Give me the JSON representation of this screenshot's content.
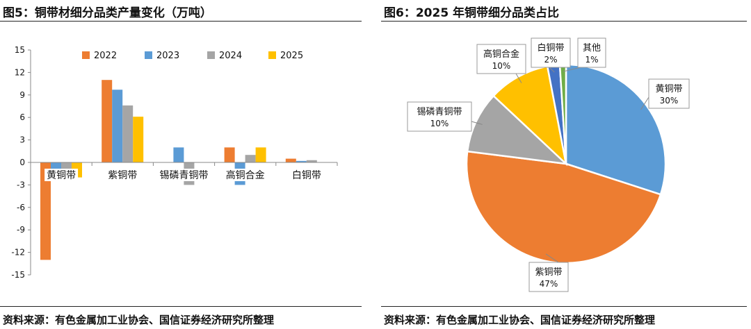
{
  "left_figure": {
    "title": "图5：铜带材细分品类产量变化（万吨）",
    "source": "资料来源：有色金属加工业协会、国信证券经济研究所整理"
  },
  "right_figure": {
    "title": "图6：2025 年铜带细分品类占比",
    "source": "资料来源：有色金属加工业协会、国信证券经济研究所整理"
  },
  "colors": {
    "2022": "#ED7D31",
    "2023": "#5B9BD5",
    "2024": "#A5A5A5",
    "2025": "#FFC000",
    "other": "#70AD47",
    "white_copper": "#4472C4"
  },
  "chart_data": [
    {
      "type": "bar",
      "title": "图5：铜带材细分品类产量变化（万吨）",
      "categories": [
        "黄铜带",
        "紫铜带",
        "锡磷青铜带",
        "高铜合金",
        "白铜带"
      ],
      "series": [
        {
          "name": "2022",
          "values": [
            -13,
            11,
            0,
            2,
            0.5
          ]
        },
        {
          "name": "2023",
          "values": [
            -1,
            9.7,
            2,
            -3,
            0.2
          ]
        },
        {
          "name": "2024",
          "values": [
            -1,
            7.6,
            -3,
            1,
            0.3
          ]
        },
        {
          "name": "2025",
          "values": [
            -2,
            6.1,
            0,
            2,
            0
          ]
        }
      ],
      "yticks": [
        15,
        12,
        9,
        6,
        3,
        0,
        -3,
        -6,
        -9,
        -12,
        -15
      ],
      "ylim": [
        -15,
        15
      ],
      "xlabel": "",
      "ylabel": "",
      "legend_position": "top"
    },
    {
      "type": "pie",
      "title": "图6：2025 年铜带细分品类占比",
      "slices": [
        {
          "name": "黄铜带",
          "value": 30,
          "label": "30%"
        },
        {
          "name": "紫铜带",
          "value": 47,
          "label": "47%"
        },
        {
          "name": "锡磷青铜带",
          "value": 10,
          "label": "10%"
        },
        {
          "name": "高铜合金",
          "value": 10,
          "label": "10%"
        },
        {
          "name": "白铜带",
          "value": 2,
          "label": "2%"
        },
        {
          "name": "其他",
          "value": 1,
          "label": "1%"
        }
      ]
    }
  ]
}
